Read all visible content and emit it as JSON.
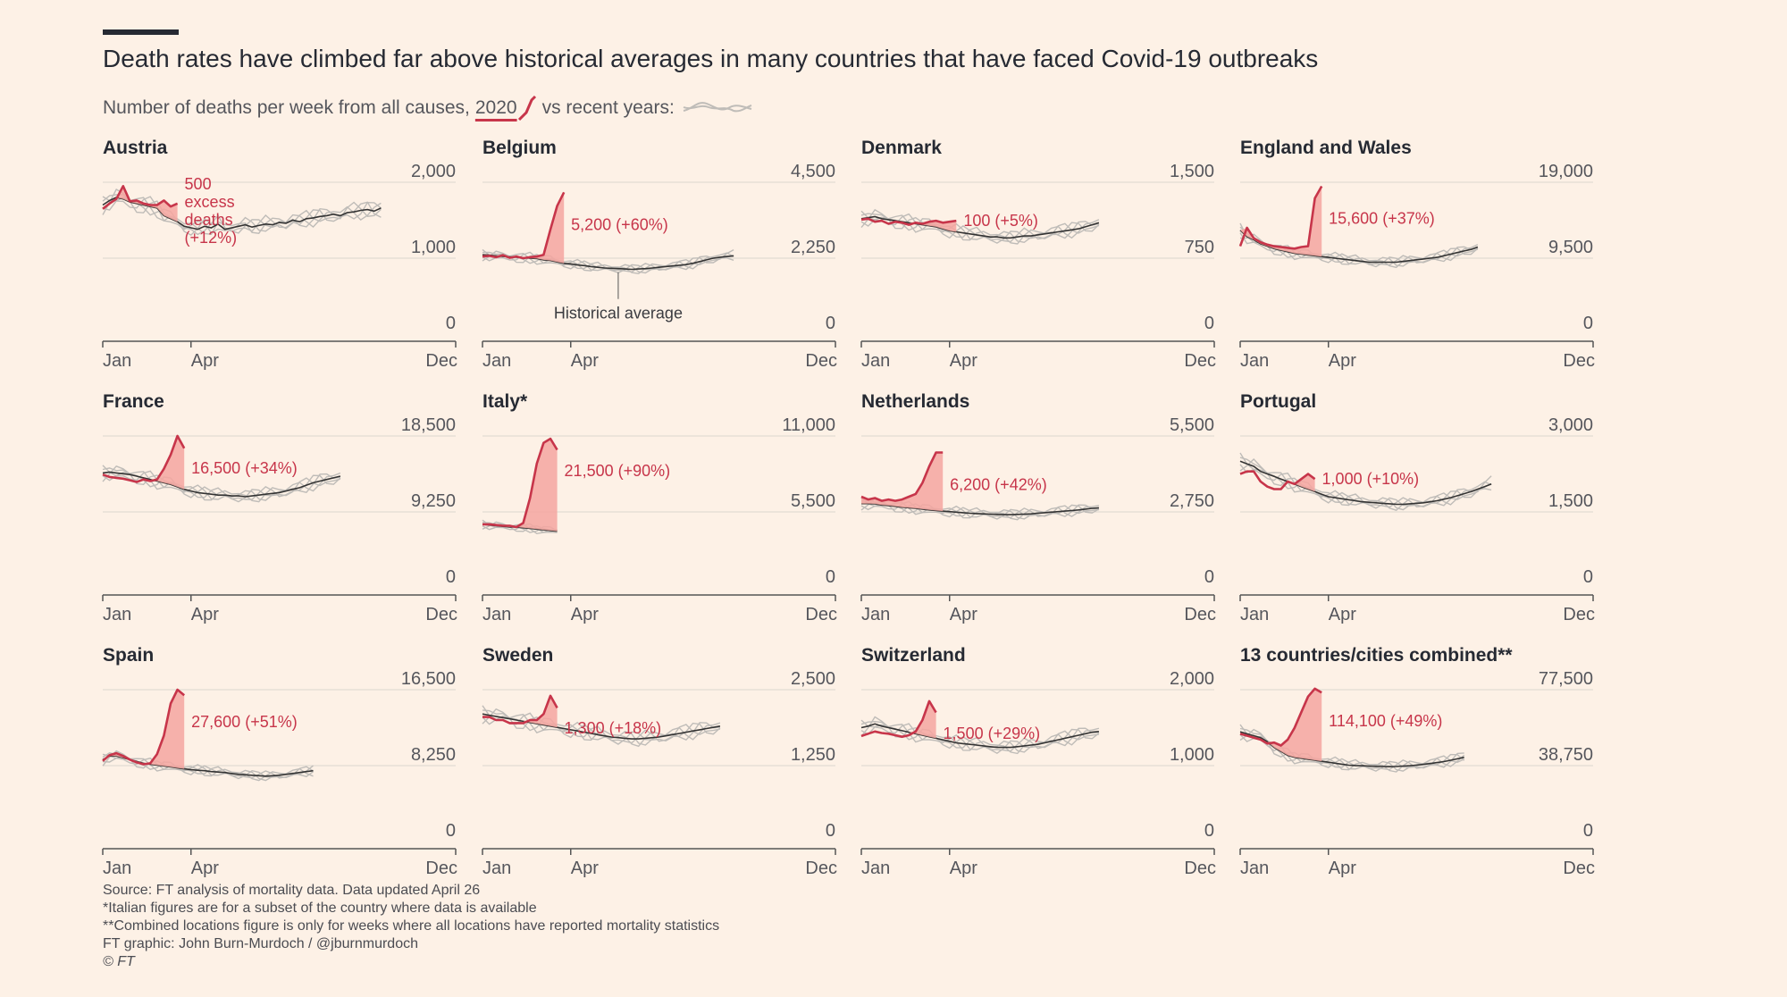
{
  "header": {
    "title": "Death rates have climbed far above historical averages in many countries that have faced Covid-19 outbreaks",
    "subtitle_prefix": "Number of deaths per week from all causes,",
    "subtitle_year": "2020",
    "subtitle_middle": "vs recent years:"
  },
  "colors": {
    "current": "#c7354a",
    "excess_fill": "#f4a6a0",
    "average": "#333333",
    "recent_years": "#bfbcb8",
    "grid": "#dcd6cf",
    "axis": "#555555",
    "background": "#fdf1e6"
  },
  "footer": {
    "source": "Source: FT analysis of mortality data. Data updated April 26",
    "note1": "*Italian figures are for a subset of the country where data is available",
    "note2": "**Combined locations figure is only for weeks where all locations have reported mortality statistics",
    "credit": "FT graphic: John Burn-Murdoch / @jburnmurdoch",
    "copyright": "© FT"
  },
  "chart_data": [
    {
      "type": "line",
      "title": "Austria",
      "x_ticks": [
        "Jan",
        "Apr",
        "Dec"
      ],
      "y_ticks": [
        "0",
        "1,000",
        "2,000"
      ],
      "ylim": [
        0,
        2000
      ],
      "series": [
        {
          "values": [
            1650,
            1720,
            1780,
            1950,
            1750,
            1760,
            1720,
            1700,
            1700,
            1760,
            1680,
            1720
          ]
        }
      ],
      "average": [
        1700,
        1760,
        1800,
        1780,
        1740,
        1720,
        1700,
        1680,
        1660,
        1560,
        1520,
        1480,
        1420,
        1400,
        1380,
        1420,
        1400,
        1450,
        1380,
        1400,
        1420,
        1440,
        1410,
        1430,
        1450,
        1440,
        1470,
        1460,
        1500,
        1480,
        1520,
        1530,
        1550,
        1560,
        1580,
        1560,
        1600,
        1610,
        1630,
        1640,
        1620,
        1660
      ],
      "annotation_lines": [
        "500",
        "excess",
        "deaths",
        "(+12%)"
      ]
    },
    {
      "type": "line",
      "title": "Belgium",
      "x_ticks": [
        "Jan",
        "Apr",
        "Dec"
      ],
      "y_ticks": [
        "0",
        "2,250",
        "4,500"
      ],
      "ylim": [
        0,
        4500
      ],
      "series": [
        {
          "values": [
            2300,
            2320,
            2280,
            2340,
            2260,
            2300,
            2250,
            2280,
            2300,
            2350,
            3100,
            3800,
            4200
          ]
        }
      ],
      "average": [
        2350,
        2340,
        2320,
        2300,
        2290,
        2280,
        2260,
        2250,
        2240,
        2200,
        2180,
        2140,
        2100,
        2080,
        2050,
        2030,
        2000,
        1980,
        1960,
        1950,
        1940,
        1930,
        1920,
        1930,
        1940,
        1960,
        1980,
        2000,
        2020,
        2040,
        2060,
        2100,
        2150,
        2200,
        2250,
        2280,
        2300,
        2320
      ],
      "annotation_lines": [
        "5,200 (+60%)"
      ],
      "callout": "Historical average"
    },
    {
      "type": "line",
      "title": "Denmark",
      "x_ticks": [
        "Jan",
        "Apr",
        "Dec"
      ],
      "y_ticks": [
        "0",
        "750",
        "1,500"
      ],
      "ylim": [
        0,
        1500
      ],
      "series": [
        {
          "values": [
            1130,
            1140,
            1110,
            1120,
            1090,
            1110,
            1100,
            1080,
            1100,
            1090,
            1110,
            1120,
            1100,
            1110,
            1120
          ]
        }
      ],
      "average": [
        1140,
        1150,
        1160,
        1140,
        1130,
        1120,
        1110,
        1100,
        1090,
        1080,
        1070,
        1060,
        1040,
        1020,
        1010,
        1000,
        990,
        980,
        970,
        960,
        960,
        950,
        950,
        960,
        970,
        970,
        980,
        990,
        1000,
        1010,
        1020,
        1030,
        1040,
        1060,
        1080,
        1100
      ],
      "annotation_lines": [
        "100 (+5%)"
      ]
    },
    {
      "type": "line",
      "title": "England and Wales",
      "x_ticks": [
        "Jan",
        "Apr",
        "Dec"
      ],
      "y_ticks": [
        "0",
        "9,500",
        "19,000"
      ],
      "ylim": [
        0,
        19000
      ],
      "series": [
        {
          "values": [
            11000,
            13300,
            12000,
            11500,
            11200,
            11000,
            10900,
            10800,
            10700,
            10900,
            11000,
            17000,
            18500
          ]
        }
      ],
      "average": [
        13000,
        12200,
        11800,
        11300,
        11000,
        10700,
        10500,
        10300,
        10100,
        10000,
        9900,
        9800,
        9700,
        9600,
        9500,
        9400,
        9300,
        9200,
        9100,
        9000,
        9000,
        9000,
        9000,
        9000,
        9100,
        9200,
        9300,
        9400,
        9500,
        9600,
        9800,
        10000,
        10200,
        10400,
        10600,
        10900
      ],
      "annotation_lines": [
        "15,600 (+37%)"
      ]
    },
    {
      "type": "line",
      "title": "France",
      "x_ticks": [
        "Jan",
        "Apr",
        "Dec"
      ],
      "y_ticks": [
        "0",
        "9,250",
        "18,500"
      ],
      "ylim": [
        0,
        18500
      ],
      "series": [
        {
          "values": [
            13800,
            13500,
            13400,
            13300,
            13100,
            12900,
            13200,
            13000,
            13200,
            14500,
            16200,
            18500,
            17000
          ]
        }
      ],
      "average": [
        14000,
        14100,
        14000,
        13900,
        13800,
        13600,
        13400,
        13200,
        13000,
        12800,
        12600,
        12300,
        12000,
        11800,
        11600,
        11500,
        11400,
        11300,
        11300,
        11200,
        11200,
        11100,
        11200,
        11300,
        11400,
        11500,
        11600,
        11800,
        12000,
        12200,
        12500,
        12800,
        13000,
        13200,
        13400,
        13600
      ],
      "annotation_lines": [
        "16,500 (+34%)"
      ]
    },
    {
      "type": "line",
      "title": "Italy*",
      "x_ticks": [
        "Jan",
        "Apr",
        "Dec"
      ],
      "y_ticks": [
        "0",
        "5,500",
        "11,000"
      ],
      "ylim": [
        0,
        11000
      ],
      "series": [
        {
          "values": [
            4600,
            4600,
            4550,
            4500,
            4500,
            4400,
            4700,
            6500,
            9000,
            10500,
            10800,
            10000
          ]
        }
      ],
      "average": [
        4600,
        4550,
        4500,
        4450,
        4400,
        4400,
        4350,
        4300,
        4250,
        4200,
        4150,
        4100
      ],
      "annotation_lines": [
        "21,500 (+90%)"
      ]
    },
    {
      "type": "line",
      "title": "Netherlands",
      "x_ticks": [
        "Jan",
        "Apr",
        "Dec"
      ],
      "y_ticks": [
        "0",
        "2,750",
        "5,500"
      ],
      "ylim": [
        0,
        5500
      ],
      "series": [
        {
          "values": [
            3300,
            3200,
            3250,
            3150,
            3200,
            3150,
            3200,
            3300,
            3400,
            3800,
            4400,
            4900,
            4900
          ]
        }
      ],
      "average": [
        3050,
        3050,
        3040,
        3000,
        2980,
        2950,
        2920,
        2900,
        2880,
        2850,
        2820,
        2800,
        2780,
        2760,
        2740,
        2720,
        2700,
        2690,
        2680,
        2670,
        2660,
        2650,
        2650,
        2660,
        2670,
        2680,
        2700,
        2720,
        2740,
        2760,
        2780,
        2800,
        2820,
        2850,
        2880,
        2900
      ],
      "annotation_lines": [
        "6,200 (+42%)"
      ]
    },
    {
      "type": "line",
      "title": "Portugal",
      "x_ticks": [
        "Jan",
        "Apr",
        "Dec"
      ],
      "y_ticks": [
        "0",
        "1,500",
        "3,000"
      ],
      "ylim": [
        0,
        3000
      ],
      "series": [
        {
          "values": [
            2250,
            2300,
            2300,
            2100,
            2000,
            1950,
            1950,
            2100,
            2050,
            2150,
            2250,
            2150
          ]
        }
      ],
      "average": [
        2500,
        2450,
        2400,
        2300,
        2250,
        2200,
        2150,
        2100,
        2050,
        2000,
        1950,
        1900,
        1850,
        1800,
        1780,
        1760,
        1740,
        1720,
        1700,
        1690,
        1680,
        1670,
        1660,
        1650,
        1650,
        1660,
        1670,
        1680,
        1700,
        1720,
        1750,
        1780,
        1820,
        1860,
        1900,
        1950,
        2000,
        2050
      ],
      "annotation_lines": [
        "1,000 (+10%)"
      ]
    },
    {
      "type": "line",
      "title": "Spain",
      "x_ticks": [
        "Jan",
        "Apr",
        "Dec"
      ],
      "y_ticks": [
        "0",
        "8,250",
        "16,500"
      ],
      "ylim": [
        0,
        16500
      ],
      "series": [
        {
          "values": [
            8750,
            9400,
            9600,
            9300,
            8900,
            8600,
            8400,
            8500,
            9500,
            11500,
            15000,
            16500,
            15900
          ]
        }
      ],
      "average": [
        8900,
        9300,
        9300,
        9100,
        8900,
        8700,
        8500,
        8400,
        8300,
        8200,
        8100,
        8000,
        7900,
        7800,
        7750,
        7700,
        7600,
        7550,
        7500,
        7400,
        7300,
        7250,
        7200,
        7150,
        7100,
        7150,
        7200,
        7300,
        7400,
        7500,
        7600,
        7700
      ],
      "annotation_lines": [
        "27,600 (+51%)"
      ]
    },
    {
      "type": "line",
      "title": "Sweden",
      "x_ticks": [
        "Jan",
        "Apr",
        "Dec"
      ],
      "y_ticks": [
        "0",
        "1,250",
        "2,500"
      ],
      "ylim": [
        0,
        2500
      ],
      "series": [
        {
          "values": [
            2050,
            2050,
            2000,
            2000,
            1950,
            1950,
            1950,
            2000,
            2000,
            2100,
            2400,
            2200
          ]
        }
      ],
      "average": [
        2100,
        2080,
        2060,
        2040,
        2020,
        2000,
        1980,
        1960,
        1940,
        1920,
        1900,
        1880,
        1860,
        1840,
        1820,
        1800,
        1780,
        1760,
        1740,
        1720,
        1710,
        1700,
        1690,
        1690,
        1700,
        1710,
        1720,
        1740,
        1760,
        1780,
        1800,
        1820,
        1840,
        1860,
        1880,
        1900
      ],
      "annotation_lines": [
        "1,300 (+18%)"
      ]
    },
    {
      "type": "line",
      "title": "Switzerland",
      "x_ticks": [
        "Jan",
        "Apr",
        "Dec"
      ],
      "y_ticks": [
        "0",
        "1,000",
        "2,000"
      ],
      "ylim": [
        0,
        2000
      ],
      "series": [
        {
          "values": [
            1390,
            1420,
            1450,
            1430,
            1420,
            1400,
            1380,
            1400,
            1450,
            1600,
            1850,
            1700
          ]
        }
      ],
      "average": [
        1500,
        1520,
        1550,
        1520,
        1500,
        1480,
        1460,
        1440,
        1420,
        1400,
        1380,
        1360,
        1340,
        1320,
        1300,
        1290,
        1280,
        1270,
        1260,
        1250,
        1240,
        1240,
        1240,
        1250,
        1260,
        1270,
        1280,
        1300,
        1320,
        1340,
        1360,
        1380,
        1400,
        1420,
        1440,
        1450
      ],
      "annotation_lines": [
        "1,500 (+29%)"
      ]
    },
    {
      "type": "line",
      "title": "13 countries/cities combined**",
      "x_ticks": [
        "Jan",
        "Apr",
        "Dec"
      ],
      "y_ticks": [
        "0",
        "38,750",
        "77,500"
      ],
      "ylim": [
        0,
        77500
      ],
      "series": [
        {
          "values": [
            55000,
            54000,
            53000,
            52000,
            50000,
            50500,
            49000,
            52000,
            58000,
            66000,
            74000,
            78000,
            76000
          ]
        }
      ],
      "average": [
        56000,
        55000,
        54000,
        53000,
        51000,
        48000,
        46000,
        44000,
        43000,
        42500,
        42000,
        41500,
        41000,
        40500,
        40000,
        39500,
        39000,
        38800,
        38700,
        38500,
        38400,
        38300,
        38200,
        38300,
        38500,
        38700,
        39000,
        39400,
        39800,
        40300,
        40800,
        41500,
        42200,
        43000
      ],
      "annotation_lines": [
        "114,100 (+49%)"
      ]
    }
  ]
}
